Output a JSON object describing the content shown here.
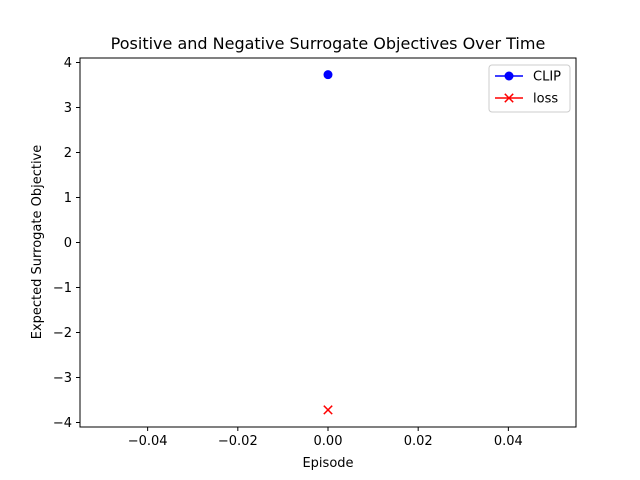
{
  "chart_data": {
    "type": "line",
    "title": "Positive and Negative Surrogate Objectives Over Time",
    "xlabel": "Episode",
    "ylabel": "Expected Surrogate Objective",
    "xlim": [
      -0.055,
      0.055
    ],
    "ylim": [
      -4.1,
      4.1
    ],
    "x_ticks": [
      -0.04,
      -0.02,
      0.0,
      0.02,
      0.04
    ],
    "x_tick_labels": [
      "−0.04",
      "−0.02",
      "0.00",
      "0.02",
      "0.04"
    ],
    "y_ticks": [
      -4,
      -3,
      -2,
      -1,
      0,
      1,
      2,
      3,
      4
    ],
    "y_tick_labels": [
      "−4",
      "−3",
      "−2",
      "−1",
      "0",
      "1",
      "2",
      "3",
      "4"
    ],
    "grid": false,
    "legend_position": "top-right",
    "series": [
      {
        "name": "CLIP",
        "color": "#0000ff",
        "marker": "circle",
        "x": [
          0
        ],
        "values": [
          3.73
        ]
      },
      {
        "name": "loss",
        "color": "#ff0000",
        "marker": "x",
        "x": [
          0
        ],
        "values": [
          -3.72
        ]
      }
    ]
  }
}
